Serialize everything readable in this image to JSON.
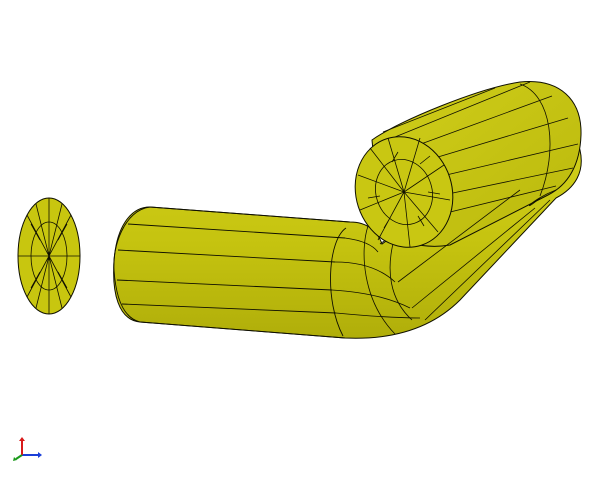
{
  "viewport": {
    "background": "#ffffff"
  },
  "colors": {
    "surface": "#c8c60f",
    "surface_dark": "#b6b40c",
    "surface_light": "#d6d424",
    "mesh_edge": "#101000",
    "axis_x": "#1a3fd8",
    "axis_y": "#d81a1a",
    "axis_z": "#1a9a1a"
  },
  "scene": {
    "objects": [
      {
        "name": "separated-end-cap-disc",
        "kind": "meshed disc",
        "icon": "mesh-disc"
      },
      {
        "name": "bent-pipe-body",
        "kind": "meshed bent cylinder",
        "icon": "mesh-pipe"
      },
      {
        "name": "pipe-end-face",
        "kind": "meshed circular face",
        "icon": "mesh-disc"
      }
    ]
  },
  "triad": {
    "icon": "axis-triad-icon"
  }
}
